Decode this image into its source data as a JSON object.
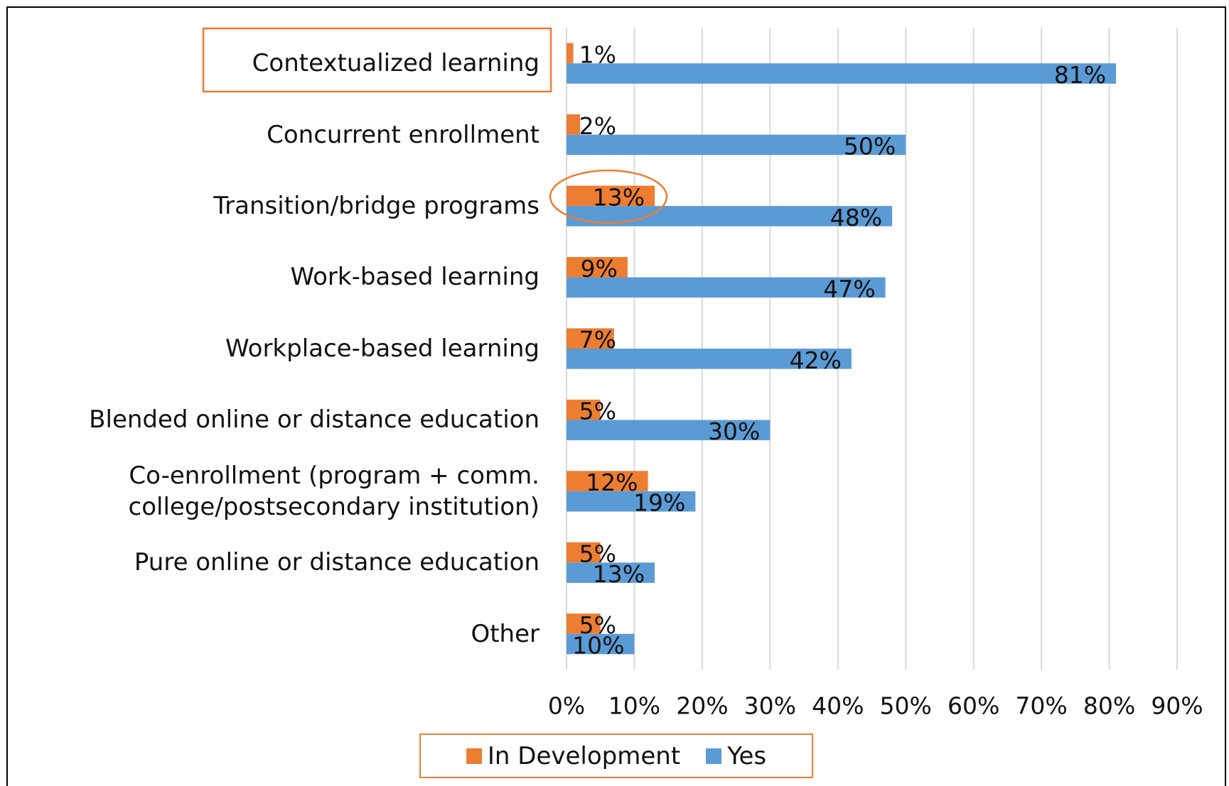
{
  "chart_data": {
    "type": "bar",
    "orientation": "horizontal",
    "categories": [
      "Contextualized learning",
      "Concurrent enrollment",
      "Transition/bridge programs",
      "Work-based learning",
      "Workplace-based learning",
      "Blended online or distance education",
      "Co-enrollment (program + comm. college/postsecondary institution)",
      "Pure online or distance education",
      "Other"
    ],
    "series": [
      {
        "name": "In Development",
        "color": "#ED7D31",
        "values": [
          1,
          2,
          13,
          9,
          7,
          5,
          12,
          5,
          5
        ],
        "value_labels": [
          "1%",
          "2%",
          "13%",
          "9%",
          "7%",
          "5%",
          "12%",
          "5%",
          "5%"
        ]
      },
      {
        "name": "Yes",
        "color": "#5B9BD5",
        "values": [
          81,
          50,
          48,
          47,
          42,
          30,
          19,
          13,
          10
        ],
        "value_labels": [
          "81%",
          "50%",
          "48%",
          "47%",
          "42%",
          "30%",
          "19%",
          "13%",
          "10%"
        ]
      }
    ],
    "xlim": [
      0,
      90
    ],
    "xticks": [
      {
        "value": 0,
        "label": "0%"
      },
      {
        "value": 10,
        "label": "10%"
      },
      {
        "value": 20,
        "label": "20%"
      },
      {
        "value": 30,
        "label": "30%"
      },
      {
        "value": 40,
        "label": "40%"
      },
      {
        "value": 50,
        "label": "50%"
      },
      {
        "value": 60,
        "label": "60%"
      },
      {
        "value": 70,
        "label": "70%"
      },
      {
        "value": 80,
        "label": "80%"
      },
      {
        "value": 90,
        "label": "90%"
      }
    ],
    "grid": true,
    "legend": "bottom"
  }
}
